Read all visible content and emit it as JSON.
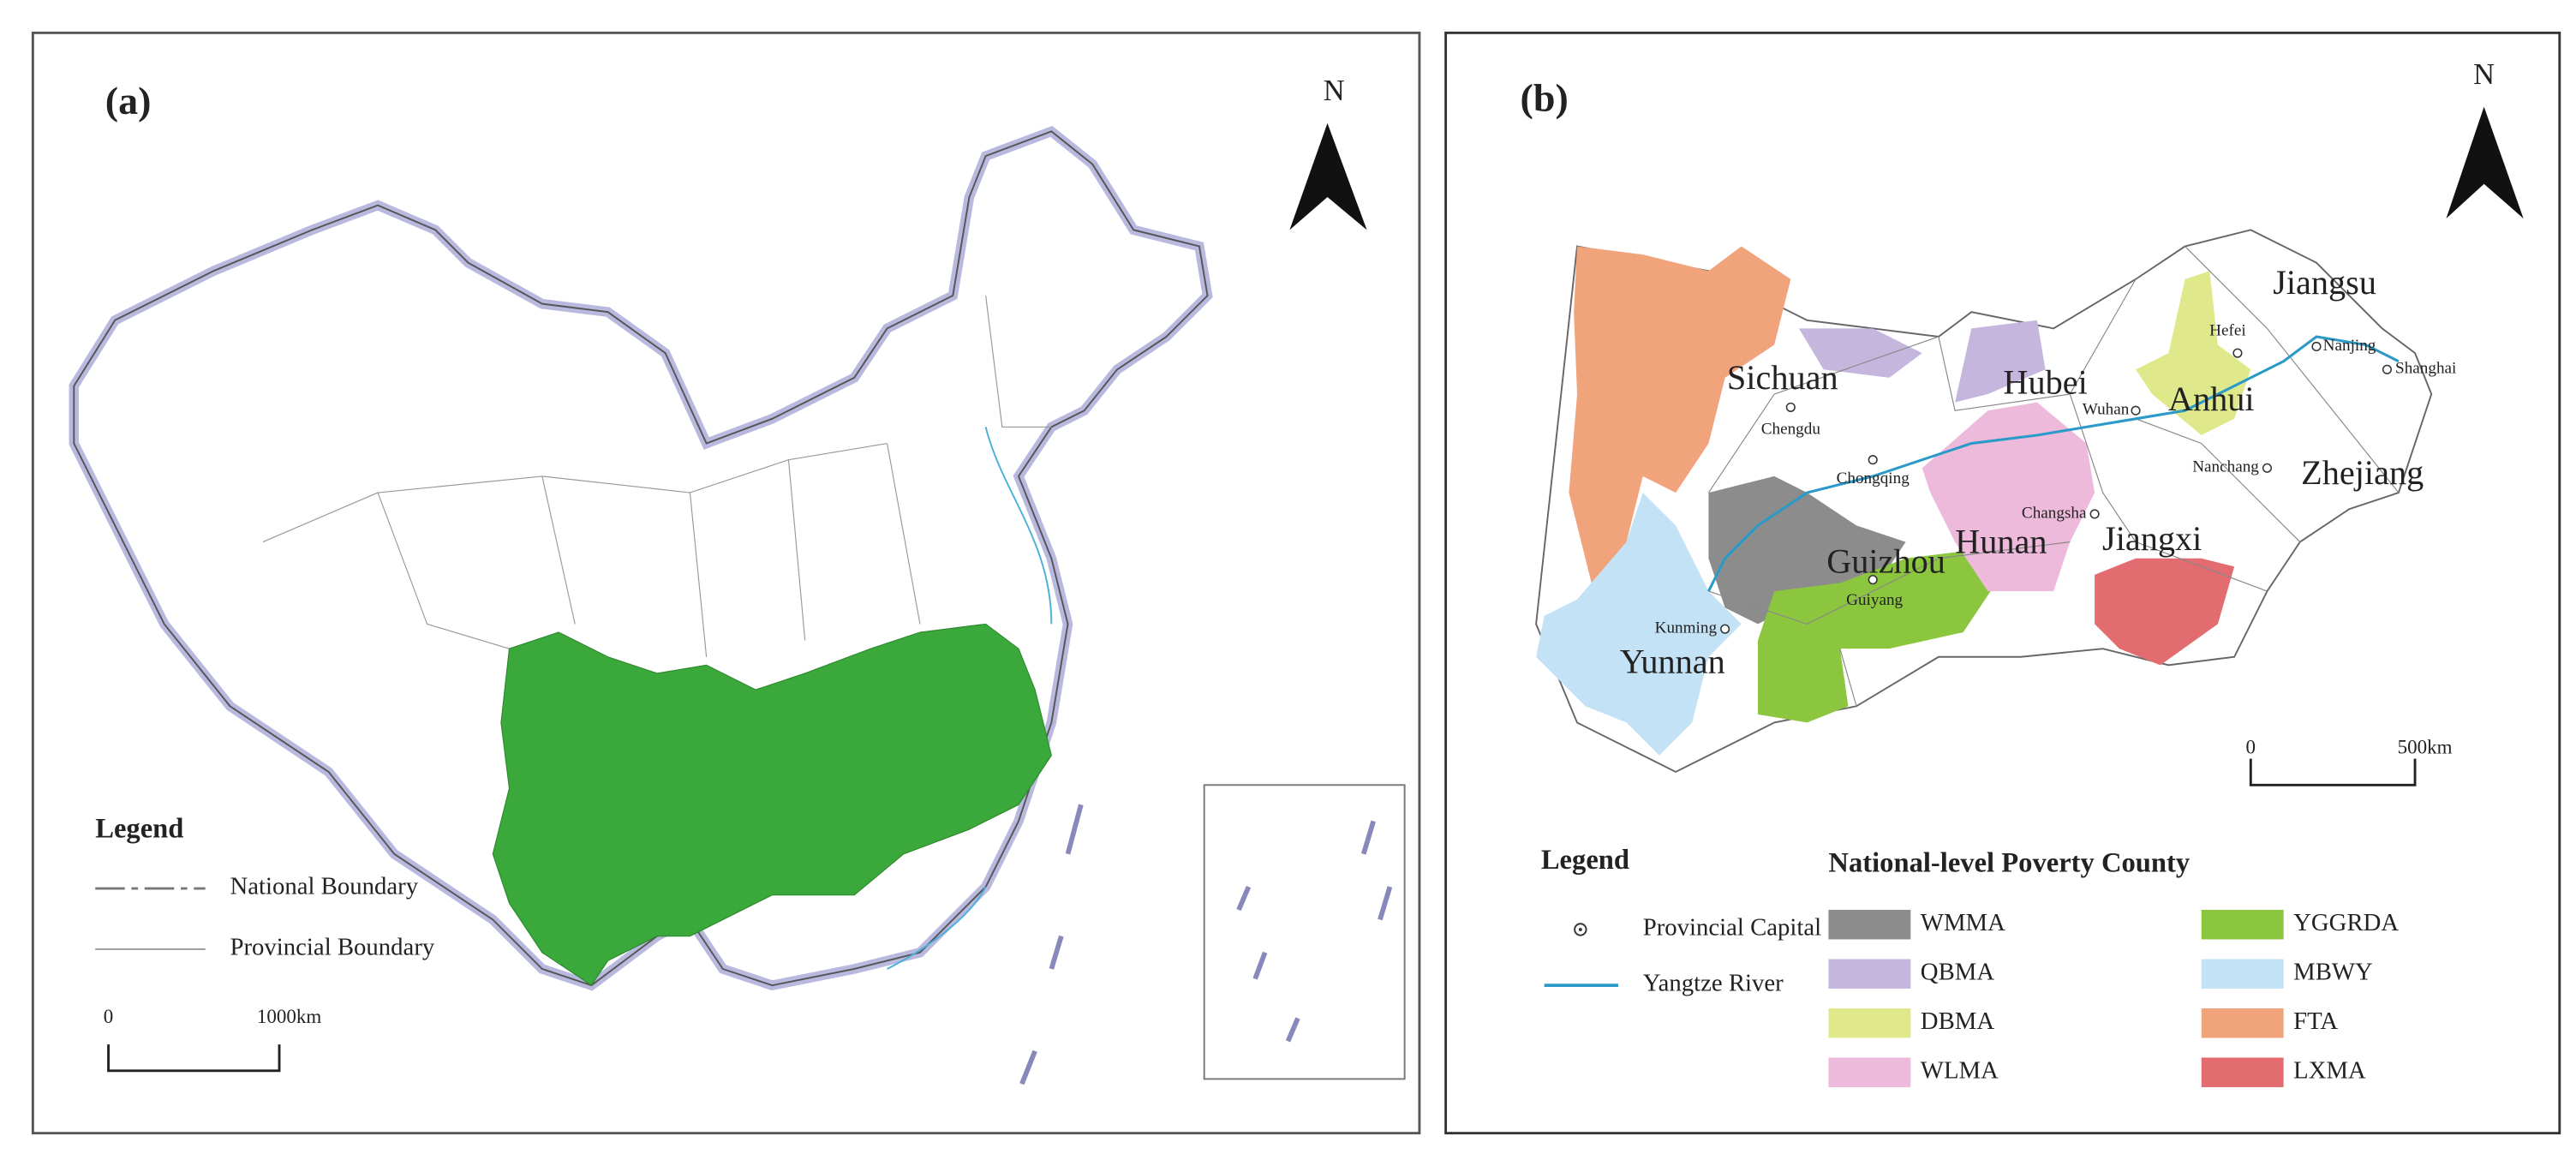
{
  "panels": [
    {
      "label": "(a)",
      "north": "N",
      "legend": {
        "title": "Legend",
        "items": [
          "National Boundary",
          "Provincial Boundary"
        ]
      },
      "scale": [
        "0",
        "1000km"
      ]
    },
    {
      "label": "(b)",
      "north": "N",
      "provinces": [
        "Sichuan",
        "Hubei",
        "Anhui",
        "Jiangsu",
        "Zhejiang",
        "Jiangxi",
        "Hunan",
        "Guizhou",
        "Yunnan"
      ],
      "capitals": [
        "Chengdu",
        "Chongqing",
        "Wuhan",
        "Hefei",
        "Nanjing",
        "Shanghai",
        "Nanchang",
        "Changsha",
        "Guiyang",
        "Kunming"
      ],
      "scale": [
        "0",
        "500km"
      ],
      "legend": {
        "title": "Legend",
        "items": [
          "Provincial Capital",
          "Yangtze River"
        ]
      },
      "poverty": {
        "title": "National-level Poverty County",
        "areas": [
          {
            "name": "WMMA",
            "color": "#8c8c8c"
          },
          {
            "name": "QBMA",
            "color": "#c5b6de"
          },
          {
            "name": "DBMA",
            "color": "#dfe98c"
          },
          {
            "name": "WLMA",
            "color": "#eebadb"
          },
          {
            "name": "YGGRDA",
            "color": "#8cc63f"
          },
          {
            "name": "MBWY",
            "color": "#c3e2f5"
          },
          {
            "name": "FTA",
            "color": "#f1a37c"
          },
          {
            "name": "LXMA",
            "color": "#e26c70"
          }
        ]
      }
    }
  ]
}
